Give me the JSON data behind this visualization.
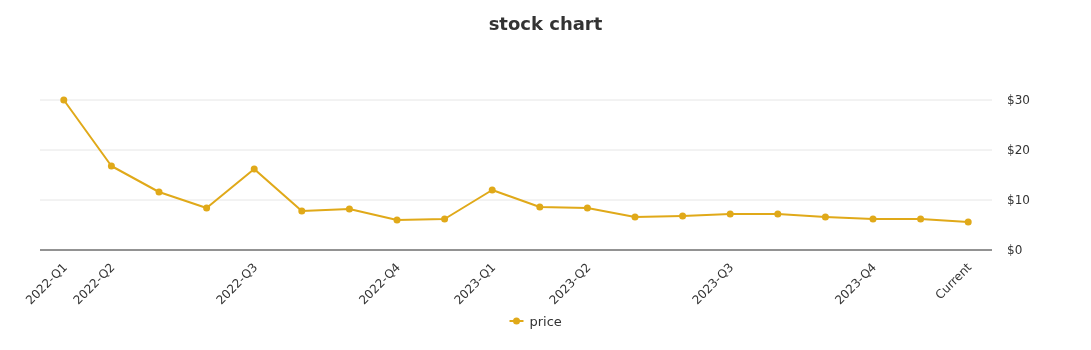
{
  "chart_data": {
    "type": "line",
    "title": "stock chart",
    "categories": [
      "2022-Q1",
      "2022-Q2",
      null,
      null,
      "2022-Q3",
      null,
      null,
      "2022-Q4",
      null,
      "2023-Q1",
      null,
      "2023-Q2",
      null,
      null,
      "2023-Q3",
      null,
      null,
      "2023-Q4",
      null,
      "Current"
    ],
    "series": [
      {
        "name": "price",
        "color": "#e0a919",
        "values": [
          30,
          16.8,
          11.6,
          8.4,
          16.2,
          7.8,
          8.2,
          6.0,
          6.2,
          12.0,
          8.6,
          8.4,
          6.6,
          6.8,
          7.2,
          7.2,
          6.6,
          6.2,
          6.2,
          5.6
        ]
      }
    ],
    "ylim": [
      0,
      30
    ],
    "yticks": [
      {
        "value": 0,
        "label": "$0"
      },
      {
        "value": 10,
        "label": "$10"
      },
      {
        "value": 20,
        "label": "$20"
      },
      {
        "value": 30,
        "label": "$30"
      }
    ],
    "grid": "y",
    "legend": "bottom",
    "marker": "circle",
    "line_style": "solid"
  }
}
